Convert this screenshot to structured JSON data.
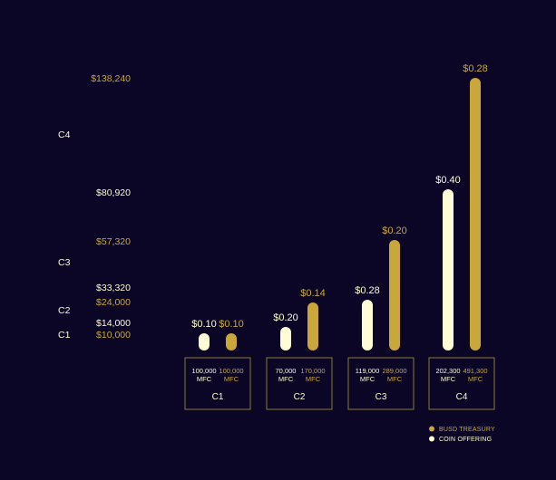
{
  "colors": {
    "background": "#0b0625",
    "coin_offering": "#fdfcd6",
    "busd_treasury": "#c9a73a",
    "box_border": "#8a7a3a"
  },
  "chart_data": {
    "type": "bar",
    "categories": [
      "C1",
      "C2",
      "C3",
      "C4"
    ],
    "series": [
      {
        "name": "COIN OFFERING",
        "values": [
          0.1,
          0.2,
          0.28,
          0.4
        ],
        "labels": [
          "$0.10",
          "$0.20",
          "$0.28",
          "$0.40"
        ],
        "quantities": [
          "100,000",
          "70,000",
          "119,000",
          "202,300"
        ],
        "unit": "MFC",
        "color": "#fdfcd6"
      },
      {
        "name": "BUSD TREASURY",
        "values": [
          0.1,
          0.14,
          0.2,
          0.28
        ],
        "labels": [
          "$0.10",
          "$0.14",
          "$0.20",
          "$0.28"
        ],
        "quantities": [
          "100,000",
          "170,000",
          "289,000",
          "491,300"
        ],
        "unit": "MFC",
        "color": "#c9a73a"
      }
    ],
    "side_axis": {
      "categories": [
        "C1",
        "C2",
        "C3",
        "C4"
      ],
      "coin_offering_totals": [
        "$14,000",
        "$33,320",
        "$80,920"
      ],
      "treasury_totals": [
        "$10,000",
        "$24,000",
        "$57,320",
        "$138,240"
      ]
    },
    "legend": {
      "position": "bottom-right",
      "entries": [
        "BUSD TREASURY",
        "COIN OFFERING"
      ]
    },
    "title": "",
    "xlabel": "",
    "ylabel": ""
  }
}
